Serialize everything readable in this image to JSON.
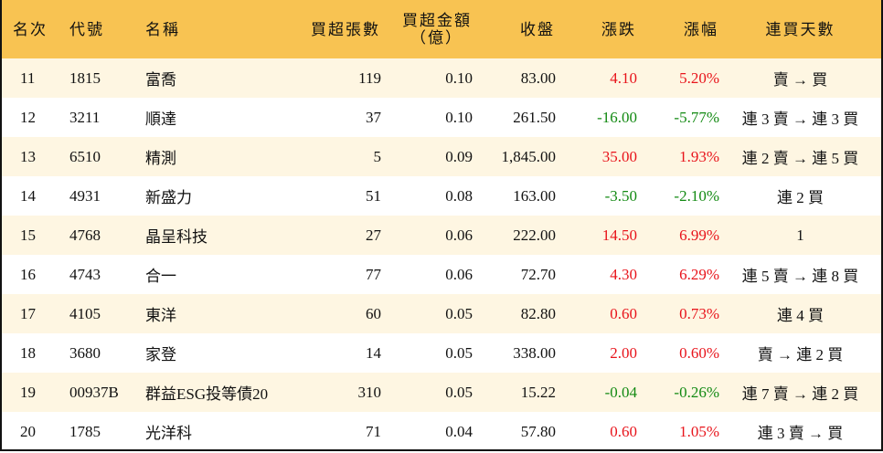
{
  "headers": {
    "rank": "名次",
    "code": "代號",
    "name": "名稱",
    "lots": "買超張數",
    "amount": "買超金額",
    "amount_unit": "（億）",
    "close": "收盤",
    "change": "漲跌",
    "pct": "漲幅",
    "streak": "連買天數"
  },
  "colors": {
    "header_bg": "#F8C352",
    "stripe_bg": "#FEF6E2",
    "up": "#E8141B",
    "down": "#138A13"
  },
  "rows": [
    {
      "rank": "11",
      "code": "1815",
      "name": "富喬",
      "lots": "119",
      "amount": "0.10",
      "close": "83.00",
      "change": "4.10",
      "pct": "5.20%",
      "dir": "up",
      "streak": "賣 → 買"
    },
    {
      "rank": "12",
      "code": "3211",
      "name": "順達",
      "lots": "37",
      "amount": "0.10",
      "close": "261.50",
      "change": "-16.00",
      "pct": "-5.77%",
      "dir": "down",
      "streak": "連 3 賣 → 連 3 買"
    },
    {
      "rank": "13",
      "code": "6510",
      "name": "精測",
      "lots": "5",
      "amount": "0.09",
      "close": "1,845.00",
      "change": "35.00",
      "pct": "1.93%",
      "dir": "up",
      "streak": "連 2 賣 → 連 5 買"
    },
    {
      "rank": "14",
      "code": "4931",
      "name": "新盛力",
      "lots": "51",
      "amount": "0.08",
      "close": "163.00",
      "change": "-3.50",
      "pct": "-2.10%",
      "dir": "down",
      "streak": "連 2 買"
    },
    {
      "rank": "15",
      "code": "4768",
      "name": "晶呈科技",
      "lots": "27",
      "amount": "0.06",
      "close": "222.00",
      "change": "14.50",
      "pct": "6.99%",
      "dir": "up",
      "streak": "1"
    },
    {
      "rank": "16",
      "code": "4743",
      "name": "合一",
      "lots": "77",
      "amount": "0.06",
      "close": "72.70",
      "change": "4.30",
      "pct": "6.29%",
      "dir": "up",
      "streak": "連 5 賣 → 連 8 買"
    },
    {
      "rank": "17",
      "code": "4105",
      "name": "東洋",
      "lots": "60",
      "amount": "0.05",
      "close": "82.80",
      "change": "0.60",
      "pct": "0.73%",
      "dir": "up",
      "streak": "連 4 買"
    },
    {
      "rank": "18",
      "code": "3680",
      "name": "家登",
      "lots": "14",
      "amount": "0.05",
      "close": "338.00",
      "change": "2.00",
      "pct": "0.60%",
      "dir": "up",
      "streak": "賣 → 連 2 買"
    },
    {
      "rank": "19",
      "code": "00937B",
      "name": "群益ESG投等債20",
      "lots": "310",
      "amount": "0.05",
      "close": "15.22",
      "change": "-0.04",
      "pct": "-0.26%",
      "dir": "down",
      "streak": "連 7 賣 → 連 2 買"
    },
    {
      "rank": "20",
      "code": "1785",
      "name": "光洋科",
      "lots": "71",
      "amount": "0.04",
      "close": "57.80",
      "change": "0.60",
      "pct": "1.05%",
      "dir": "up",
      "streak": "連 3 賣 → 買"
    }
  ]
}
